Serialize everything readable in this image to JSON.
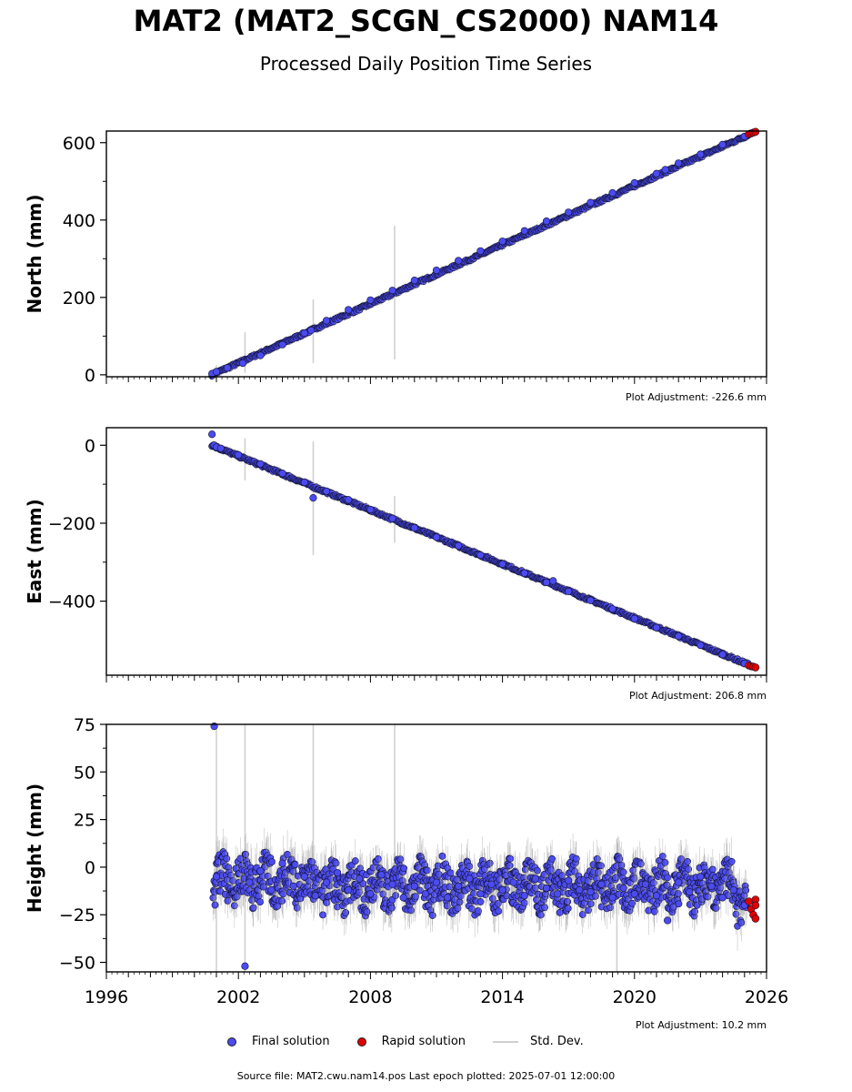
{
  "title": "MAT2 (MAT2_SCGN_CS2000) NAM14",
  "subtitle": "Processed Daily Position Time Series",
  "footer": "Source file: MAT2.cwu.nam14.pos  Last epoch plotted: 2025-07-01 12:00:00",
  "legend": {
    "final": "Final solution",
    "rapid": "Rapid solution",
    "std": "Std. Dev."
  },
  "colors": {
    "final": "#4b4bf0",
    "rapid": "#e00000",
    "std": "#d0d0d0",
    "edge": "#111133"
  },
  "chart_data": [
    {
      "type": "scatter",
      "ylabel": "North (mm)",
      "adjustment": "Plot Adjustment: -226.6 mm",
      "xlim": [
        1996,
        2026
      ],
      "ylim": [
        -5,
        630
      ],
      "yticks": [
        0,
        200,
        400,
        600
      ],
      "ytick_labels": [
        "0",
        "200",
        "400",
        "600"
      ],
      "trend": {
        "x": [
          2000.8,
          2025.5
        ],
        "y": [
          0,
          628
        ]
      },
      "series": [
        {
          "name": "Final solution",
          "x": [
            2000.8,
            2001.0,
            2001.5,
            2002.2,
            2003.0,
            2004.0,
            2005.0,
            2005.3,
            2006.0,
            2007.0,
            2008.0,
            2009.0,
            2010.0,
            2011.0,
            2012.0,
            2013.0,
            2014.0,
            2015.0,
            2016.0,
            2017.0,
            2018.0,
            2019.0,
            2020.0,
            2021.0,
            2021.4,
            2022.0,
            2023.0,
            2024.0,
            2025.0
          ],
          "y": [
            3,
            8,
            18,
            30,
            50,
            78,
            108,
            115,
            140,
            168,
            193,
            218,
            244,
            270,
            295,
            320,
            345,
            372,
            397,
            420,
            445,
            470,
            496,
            520,
            530,
            547,
            570,
            595,
            616
          ]
        },
        {
          "name": "Rapid solution",
          "x": [
            2025.2,
            2025.3,
            2025.4,
            2025.5
          ],
          "y": [
            622,
            624,
            626,
            628
          ]
        }
      ],
      "stddev_spikes": [
        {
          "x": 2001.0,
          "low": -5,
          "high": 25
        },
        {
          "x": 2002.3,
          "low": 5,
          "high": 110
        },
        {
          "x": 2005.4,
          "low": 30,
          "high": 195
        },
        {
          "x": 2009.1,
          "low": 40,
          "high": 385
        }
      ]
    },
    {
      "type": "scatter",
      "ylabel": "East (mm)",
      "adjustment": "Plot Adjustment: 206.8 mm",
      "xlim": [
        1996,
        2026
      ],
      "ylim": [
        -590,
        45
      ],
      "yticks": [
        0,
        -200,
        -400
      ],
      "ytick_labels": [
        "0",
        "−200",
        "−400"
      ],
      "trend": {
        "x": [
          2000.8,
          2025.5
        ],
        "y": [
          0,
          -570
        ]
      },
      "series": [
        {
          "name": "Final solution",
          "x": [
            2000.8,
            2000.9,
            2001.0,
            2001.2,
            2002.0,
            2003.0,
            2004.0,
            2005.0,
            2005.4,
            2006.0,
            2007.0,
            2008.0,
            2009.0,
            2010.0,
            2011.0,
            2012.0,
            2013.0,
            2014.0,
            2015.0,
            2016.0,
            2016.3,
            2017.0,
            2018.0,
            2019.0,
            2020.0,
            2021.0,
            2022.0,
            2023.0,
            2024.0,
            2025.0
          ],
          "y": [
            28,
            0,
            -5,
            -8,
            -25,
            -48,
            -72,
            -95,
            -135,
            -118,
            -140,
            -165,
            -188,
            -212,
            -236,
            -258,
            -282,
            -305,
            -328,
            -352,
            -348,
            -375,
            -398,
            -420,
            -445,
            -468,
            -490,
            -513,
            -537,
            -560
          ]
        },
        {
          "name": "Rapid solution",
          "x": [
            2025.2,
            2025.3,
            2025.4,
            2025.5
          ],
          "y": [
            -565,
            -567,
            -568,
            -570
          ]
        }
      ],
      "stddev_spikes": [
        {
          "x": 2002.3,
          "low": -90,
          "high": 18
        },
        {
          "x": 2005.4,
          "low": -282,
          "high": 10
        },
        {
          "x": 2009.1,
          "low": -250,
          "high": -130
        }
      ]
    },
    {
      "type": "scatter",
      "ylabel": "Height (mm)",
      "adjustment": "Plot Adjustment: 10.2 mm",
      "xlim": [
        1996,
        2026
      ],
      "ylim": [
        -55,
        75
      ],
      "yticks": [
        -50,
        -25,
        0,
        25,
        50,
        75
      ],
      "ytick_labels": [
        "−50",
        "−25",
        "0",
        "25",
        "50",
        "75"
      ],
      "xticks": [
        1996,
        2002,
        2008,
        2014,
        2020,
        2026
      ],
      "xtick_labels": [
        "1996",
        "2002",
        "2008",
        "2014",
        "2020",
        "2026"
      ],
      "series": [
        {
          "name": "Final solution",
          "x": [
            2000.9,
            2001.0,
            2002.3,
            2002.5,
            2003.0,
            2003.5,
            2004.0,
            2004.5,
            2005.0,
            2005.5,
            2006.0,
            2006.5,
            2007.0,
            2007.5,
            2008.0,
            2008.5,
            2009.0,
            2009.5,
            2010.0,
            2010.5,
            2011.0,
            2011.5,
            2012.0,
            2012.5,
            2013.0,
            2013.5,
            2014.0,
            2014.5,
            2015.0,
            2015.5,
            2016.0,
            2016.5,
            2017.0,
            2017.5,
            2018.0,
            2018.5,
            2019.0,
            2019.5,
            2020.0,
            2020.5,
            2021.0,
            2021.5,
            2022.0,
            2022.5,
            2023.0,
            2023.5,
            2024.0,
            2024.5,
            2025.0
          ],
          "y": [
            74,
            -5,
            -52,
            -8,
            -2,
            -12,
            2,
            -10,
            -5,
            -15,
            -8,
            -3,
            -12,
            -6,
            -14,
            -4,
            -9,
            -16,
            -10,
            -14,
            -8,
            -16,
            -10,
            -6,
            -14,
            -9,
            -12,
            -8,
            -15,
            -6,
            -11,
            -14,
            -7,
            -12,
            -13,
            -9,
            -16,
            -11,
            -14,
            -9,
            -15,
            -28,
            -8,
            -13,
            -5,
            -10,
            -16,
            -12,
            -20
          ]
        },
        {
          "name": "Rapid solution",
          "x": [
            2025.2,
            2025.3,
            2025.4,
            2025.5,
            2025.5,
            2025.5
          ],
          "y": [
            -18,
            -22,
            -25,
            -17,
            -27,
            -20
          ]
        }
      ],
      "stddev_spikes": [
        {
          "x": 2001.0,
          "low": -55,
          "high": 75
        },
        {
          "x": 2002.3,
          "low": -55,
          "high": 75
        },
        {
          "x": 2005.4,
          "low": -20,
          "high": 75
        },
        {
          "x": 2009.1,
          "low": -20,
          "high": 75
        },
        {
          "x": 2019.2,
          "low": -55,
          "high": 15
        }
      ]
    }
  ]
}
